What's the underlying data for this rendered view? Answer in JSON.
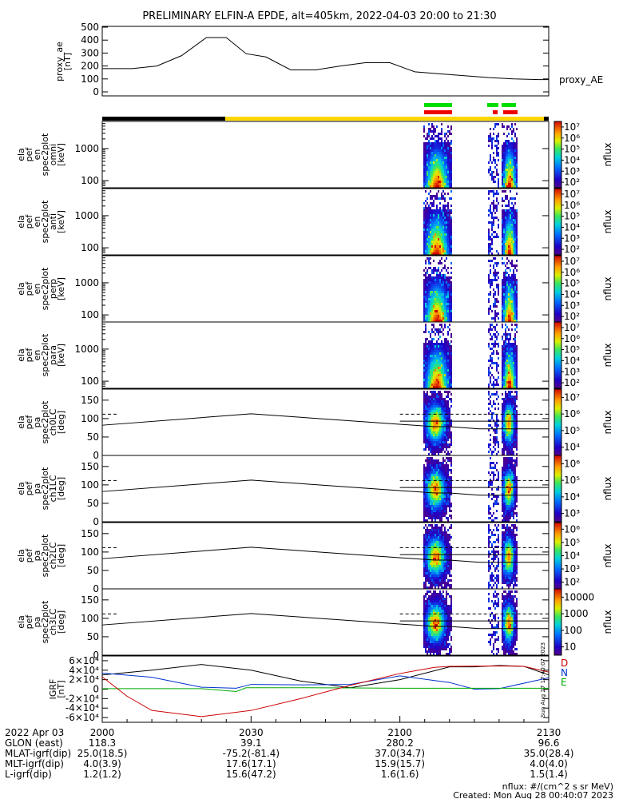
{
  "title": "PRELIMINARY ELFIN-A EPDE, alt=405km, 2022-04-03 20:00 to 21:30",
  "chart_data": [
    {
      "type": "line",
      "id": "proxy_ae",
      "ylabel_lines": [
        "proxy_ae",
        "[nT]"
      ],
      "legend": "proxy_AE",
      "ylim": [
        0,
        500
      ],
      "yticks": [
        "0",
        "100",
        "200",
        "300",
        "400",
        "500"
      ],
      "xlim": [
        0,
        90
      ],
      "x_minutes": [
        0,
        6,
        11,
        16,
        21,
        25,
        29,
        33,
        38,
        43,
        48,
        53,
        58,
        63,
        68,
        73,
        78,
        83,
        88,
        90
      ],
      "values": [
        180,
        180,
        200,
        280,
        420,
        420,
        295,
        270,
        170,
        170,
        200,
        225,
        225,
        155,
        140,
        125,
        110,
        100,
        95,
        95
      ]
    },
    {
      "type": "heatmap",
      "id": "omni",
      "ylabel_lines": [
        "ela",
        "pef",
        "en",
        "spec2plot",
        "omni",
        "[keV]"
      ],
      "ylim": [
        60,
        7000
      ],
      "yscale": "log",
      "yticks": [
        100,
        1000
      ],
      "cbar_label": "nflux",
      "cbar_ticks": [
        "10²",
        "10³",
        "10⁴",
        "10⁵",
        "10⁶",
        "10⁷"
      ]
    },
    {
      "type": "heatmap",
      "id": "anti",
      "ylabel_lines": [
        "ela",
        "pef",
        "en",
        "spec2plot",
        "anti",
        "[keV]"
      ],
      "ylim": [
        60,
        7000
      ],
      "yscale": "log",
      "yticks": [
        100,
        1000
      ],
      "cbar_label": "nflux",
      "cbar_ticks": [
        "10²",
        "10³",
        "10⁴",
        "10⁵",
        "10⁶",
        "10⁷"
      ]
    },
    {
      "type": "heatmap",
      "id": "perp",
      "ylabel_lines": [
        "ela",
        "pef",
        "en",
        "spec2plot",
        "perp",
        "[keV]"
      ],
      "ylim": [
        60,
        7000
      ],
      "yscale": "log",
      "yticks": [
        100,
        1000
      ],
      "cbar_label": "nflux",
      "cbar_ticks": [
        "10²",
        "10³",
        "10⁴",
        "10⁵",
        "10⁶",
        "10⁷"
      ]
    },
    {
      "type": "heatmap",
      "id": "para",
      "ylabel_lines": [
        "ela",
        "pef",
        "en",
        "spec2plot",
        "para",
        "[keV]"
      ],
      "ylim": [
        60,
        7000
      ],
      "yscale": "log",
      "yticks": [
        100,
        1000
      ],
      "cbar_label": "nflux",
      "cbar_ticks": [
        "10²",
        "10³",
        "10⁴",
        "10⁵",
        "10⁶",
        "10⁷"
      ]
    },
    {
      "type": "heatmap",
      "id": "ch0LC",
      "ylabel_lines": [
        "ela",
        "pef",
        "pa",
        "spec2plot",
        "ch0LC",
        "[deg]"
      ],
      "ylim": [
        0,
        180
      ],
      "yticks": [
        0,
        50,
        100,
        150
      ],
      "cbar_label": "nflux",
      "cbar_ticks": [
        "10⁴",
        "10⁵",
        "10⁶",
        "10⁷"
      ]
    },
    {
      "type": "heatmap",
      "id": "ch1LC",
      "ylabel_lines": [
        "ela",
        "pef",
        "pa",
        "spec2plot",
        "ch1LC",
        "[deg]"
      ],
      "ylim": [
        0,
        180
      ],
      "yticks": [
        0,
        50,
        100,
        150
      ],
      "cbar_label": "nflux",
      "cbar_ticks": [
        "10³",
        "10⁴",
        "10⁵",
        "10⁶"
      ]
    },
    {
      "type": "heatmap",
      "id": "ch2LC",
      "ylabel_lines": [
        "ela",
        "pef",
        "pa",
        "spec2plot",
        "ch2LC",
        "[deg]"
      ],
      "ylim": [
        0,
        180
      ],
      "yticks": [
        0,
        50,
        100,
        150
      ],
      "cbar_label": "nflux",
      "cbar_ticks": [
        "10²",
        "10³",
        "10⁴",
        "10⁵",
        "10⁶"
      ]
    },
    {
      "type": "heatmap",
      "id": "ch3LC",
      "ylabel_lines": [
        "ela",
        "pef",
        "pa",
        "spec2plot",
        "ch3LC",
        "[deg]"
      ],
      "ylim": [
        0,
        180
      ],
      "yticks": [
        0,
        50,
        100,
        150
      ],
      "cbar_label": "nflux",
      "cbar_ticks": [
        "10",
        "100",
        "1000",
        "10000"
      ]
    },
    {
      "type": "line",
      "id": "igrf",
      "ylabel_lines": [
        "IGRF",
        "[nT]"
      ],
      "ylim": [
        -70000,
        70000
      ],
      "yticks": [
        "-6×10⁴",
        "-4×10⁴",
        "-2×10⁴",
        "0",
        "2×10⁴",
        "4×10⁴",
        "6×10⁴"
      ],
      "legend": [
        "D",
        "N",
        "E"
      ],
      "series": [
        {
          "name": "D",
          "color": "#000000",
          "x_minutes": [
            0,
            10,
            20,
            30,
            40,
            50,
            60,
            70,
            75,
            80,
            85,
            90
          ],
          "values": [
            30000,
            40000,
            52000,
            40000,
            17000,
            3000,
            20000,
            47000,
            47000,
            50000,
            48000,
            30000
          ]
        },
        {
          "name": "N",
          "color": "#0033cc",
          "x_minutes": [
            0,
            10,
            20,
            27,
            30,
            40,
            50,
            60,
            70,
            75,
            80,
            90
          ],
          "values": [
            34000,
            25000,
            4000,
            2000,
            10000,
            9000,
            10000,
            28000,
            14000,
            0,
            1000,
            24000
          ]
        },
        {
          "name": "E",
          "color": "#00aa00",
          "x_minutes": [
            0,
            10,
            20,
            27,
            29,
            40,
            50,
            60,
            70,
            80,
            90
          ],
          "values": [
            1000,
            1000,
            1000,
            -5000,
            3000,
            3000,
            2500,
            2000,
            2000,
            2000,
            2000
          ]
        },
        {
          "name": "red",
          "color": "#cc0000",
          "x_minutes": [
            0,
            5,
            10,
            20,
            30,
            40,
            50,
            60,
            67,
            70,
            80,
            85,
            90
          ],
          "values": [
            26000,
            -15000,
            -45000,
            -58000,
            -45000,
            -20000,
            8000,
            33000,
            46000,
            48000,
            49000,
            48000,
            36000
          ]
        }
      ]
    }
  ],
  "xaxis": {
    "date": "2022 Apr 03",
    "ticks": [
      "2000",
      "2030",
      "2100",
      "2130"
    ],
    "rows": [
      {
        "label": "GLON (east)",
        "values": [
          "118.3",
          "39.1",
          "280.2",
          "96.6"
        ]
      },
      {
        "label": "MLAT-igrf(dip)",
        "values": [
          "25.0(18.5)",
          "-75.2(-81.4)",
          "37.0(34.7)",
          "35.0(28.4)"
        ]
      },
      {
        "label": "MLT-igrf(dip)",
        "values": [
          "4.0(3.9)",
          "17.6(17.1)",
          "15.9(15.7)",
          "4.0(4.0)"
        ]
      },
      {
        "label": "L-igrf(dip)",
        "values": [
          "1.2(1.2)",
          "15.6(47.2)",
          "1.6(1.6)",
          "1.5(1.4)"
        ]
      }
    ]
  },
  "footer": {
    "units": "nflux: #/(cm^2 s sr MeV)",
    "created": "Created: Mon Aug 28 00:40:07 2023",
    "sidestamp": "Sun Aug 27 17:40:07 2023"
  },
  "colors": {
    "bar_black": "#000000",
    "bar_yellow": "#ffd700",
    "flag_green": "#00dd00",
    "flag_red": "#ee0000"
  }
}
